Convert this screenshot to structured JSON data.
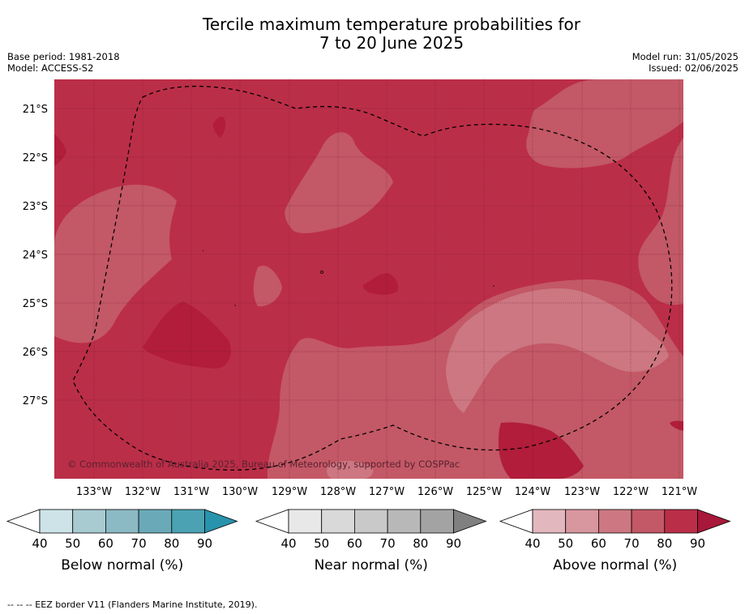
{
  "title": {
    "line1": "Tercile maximum temperature probabilities for",
    "line2": "7 to 20 June 2025"
  },
  "meta": {
    "base_period": "Base period: 1981-2018",
    "model": "Model: ACCESS-S2",
    "model_run": "Model run: 31/05/2025",
    "issued": "Issued: 02/06/2025"
  },
  "map": {
    "lat_labels": [
      "21°S",
      "22°S",
      "23°S",
      "24°S",
      "25°S",
      "26°S",
      "27°S"
    ],
    "lon_labels": [
      "133°W",
      "132°W",
      "131°W",
      "130°W",
      "129°W",
      "128°W",
      "127°W",
      "126°W",
      "125°W",
      "124°W",
      "123°W",
      "122°W",
      "121°W"
    ],
    "attribution": "© Commonwealth of Australia 2025, Bureau of Meteorology, supported by COSPPac",
    "eez_border": "EEZ border V11"
  },
  "legends": [
    {
      "label": "Below normal (%)",
      "ticks": [
        "40",
        "50",
        "60",
        "70",
        "80",
        "90"
      ],
      "colors": [
        "#ffffff",
        "#cde3e8",
        "#a8cad1",
        "#8bb9c4",
        "#6aaab8",
        "#4aa2b3",
        "#2893ad"
      ]
    },
    {
      "label": "Near normal (%)",
      "ticks": [
        "40",
        "50",
        "60",
        "70",
        "80",
        "90"
      ],
      "colors": [
        "#ffffff",
        "#e8e8e8",
        "#d9d9d9",
        "#c9c9c9",
        "#b8b8b8",
        "#a3a3a3",
        "#808080"
      ]
    },
    {
      "label": "Above normal (%)",
      "ticks": [
        "40",
        "50",
        "60",
        "70",
        "80",
        "90"
      ],
      "colors": [
        "#ffffff",
        "#e3b7be",
        "#d8969f",
        "#cc7781",
        "#c35866",
        "#bb2e48",
        "#a8183a"
      ]
    }
  ],
  "footer": "--  --  -- EEZ border V11 (Flanders Marine Institute, 2019)."
}
